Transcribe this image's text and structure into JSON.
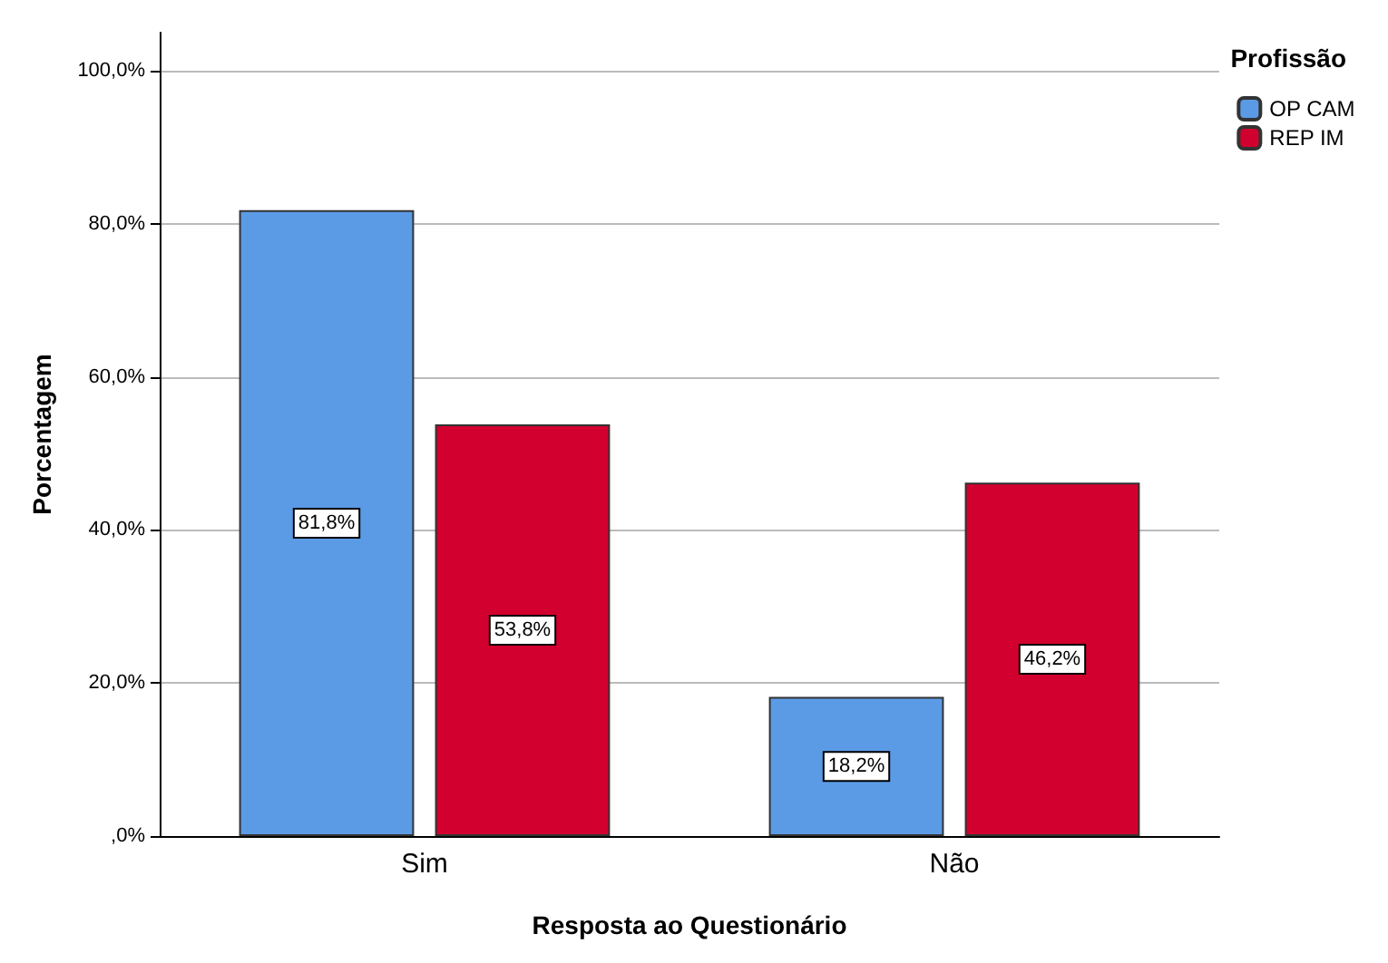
{
  "chart_data": {
    "type": "bar",
    "xlabel": "Resposta ao Questionário",
    "ylabel": "Porcentagem",
    "legend_title": "Profissão",
    "legend": "top right",
    "grid": "y",
    "categories": [
      "Sim",
      "Não"
    ],
    "series": [
      {
        "name": "OP CAM",
        "color": "#5b9be6",
        "values": [
          81.8,
          18.2
        ],
        "value_labels": [
          "81,8%",
          "18,2%"
        ]
      },
      {
        "name": "REP IM",
        "color": "#d2002e",
        "values": [
          53.8,
          46.2
        ],
        "value_labels": [
          "53,8%",
          "46,2%"
        ]
      }
    ],
    "ylim": [
      0,
      105
    ],
    "yticks": [
      {
        "value": 0,
        "label": ",0%"
      },
      {
        "value": 20,
        "label": "20,0%"
      },
      {
        "value": 40,
        "label": "40,0%"
      },
      {
        "value": 60,
        "label": "60,0%"
      },
      {
        "value": 80,
        "label": "80,0%"
      },
      {
        "value": 100,
        "label": "100,0%"
      }
    ]
  }
}
